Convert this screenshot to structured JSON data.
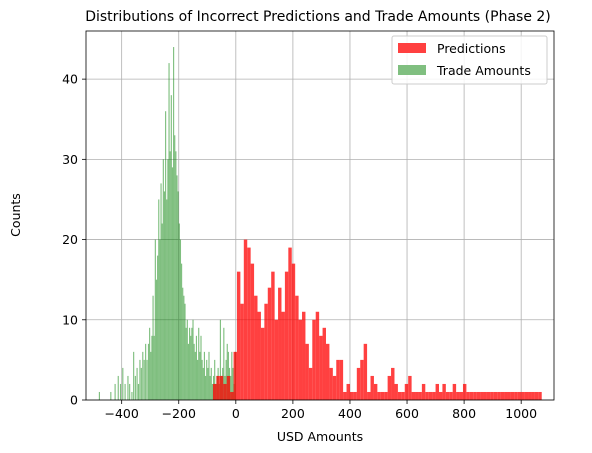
{
  "chart_data": {
    "type": "bar",
    "title": "Distributions of Incorrect Predictions and Trade Amounts (Phase 2)",
    "xlabel": "USD Amounts",
    "ylabel": "Counts",
    "xlim": [
      -525,
      1115
    ],
    "ylim": [
      0,
      46
    ],
    "x_ticks": [
      -400,
      -200,
      0,
      200,
      400,
      600,
      800,
      1000
    ],
    "y_ticks": [
      0,
      10,
      20,
      30,
      40
    ],
    "x_tick_labels": [
      "−400",
      "−200",
      "0",
      "200",
      "400",
      "600",
      "800",
      "1000"
    ],
    "y_tick_labels": [
      "0",
      "10",
      "20",
      "30",
      "40"
    ],
    "grid": true,
    "legend_position": "top-right",
    "series": [
      {
        "name": "Trade Amounts",
        "color": "#008000",
        "opacity": 0.5,
        "bins": [
          [
            -480,
            -476,
            1
          ],
          [
            -440,
            -436,
            1
          ],
          [
            -425,
            -421,
            2
          ],
          [
            -414,
            -410,
            3
          ],
          [
            -406,
            -402,
            2
          ],
          [
            -398,
            -394,
            4
          ],
          [
            -390,
            -386,
            2
          ],
          [
            -380,
            -376,
            3
          ],
          [
            -374,
            -370,
            2
          ],
          [
            -366,
            -362,
            1
          ],
          [
            -360,
            -356,
            6
          ],
          [
            -354,
            -350,
            3
          ],
          [
            -348,
            -344,
            4
          ],
          [
            -343,
            -339,
            2
          ],
          [
            -338,
            -334,
            5
          ],
          [
            -333,
            -329,
            4
          ],
          [
            -328,
            -324,
            6
          ],
          [
            -323,
            -319,
            5
          ],
          [
            -318,
            -314,
            7
          ],
          [
            -313,
            -309,
            5
          ],
          [
            -308,
            -304,
            7
          ],
          [
            -304,
            -300,
            9
          ],
          [
            -300,
            -296,
            6
          ],
          [
            -296,
            -292,
            8
          ],
          [
            -292,
            -288,
            13
          ],
          [
            -288,
            -284,
            8
          ],
          [
            -284,
            -280,
            20
          ],
          [
            -280,
            -276,
            15
          ],
          [
            -276,
            -272,
            18
          ],
          [
            -272,
            -268,
            25
          ],
          [
            -268,
            -264,
            20
          ],
          [
            -264,
            -260,
            27
          ],
          [
            -260,
            -256,
            22
          ],
          [
            -256,
            -252,
            30
          ],
          [
            -252,
            -248,
            26
          ],
          [
            -248,
            -244,
            36
          ],
          [
            -244,
            -240,
            25
          ],
          [
            -240,
            -236,
            30
          ],
          [
            -236,
            -232,
            42
          ],
          [
            -232,
            -228,
            31
          ],
          [
            -228,
            -224,
            38
          ],
          [
            -224,
            -220,
            29
          ],
          [
            -220,
            -216,
            44
          ],
          [
            -216,
            -212,
            33
          ],
          [
            -212,
            -208,
            31
          ],
          [
            -208,
            -204,
            28
          ],
          [
            -204,
            -200,
            26
          ],
          [
            -200,
            -196,
            22
          ],
          [
            -196,
            -192,
            20
          ],
          [
            -192,
            -188,
            17
          ],
          [
            -188,
            -184,
            14
          ],
          [
            -184,
            -180,
            13
          ],
          [
            -180,
            -176,
            12
          ],
          [
            -176,
            -172,
            9
          ],
          [
            -172,
            -168,
            10
          ],
          [
            -168,
            -164,
            7
          ],
          [
            -164,
            -160,
            9
          ],
          [
            -160,
            -156,
            8
          ],
          [
            -156,
            -152,
            9
          ],
          [
            -152,
            -148,
            10
          ],
          [
            -148,
            -144,
            7
          ],
          [
            -144,
            -140,
            6
          ],
          [
            -140,
            -136,
            8
          ],
          [
            -136,
            -132,
            5
          ],
          [
            -132,
            -128,
            9
          ],
          [
            -128,
            -124,
            6
          ],
          [
            -124,
            -120,
            8
          ],
          [
            -120,
            -116,
            5
          ],
          [
            -116,
            -112,
            4
          ],
          [
            -112,
            -108,
            6
          ],
          [
            -108,
            -104,
            3
          ],
          [
            -104,
            -100,
            5
          ],
          [
            -100,
            -96,
            4
          ],
          [
            -96,
            -92,
            6
          ],
          [
            -92,
            -88,
            3
          ],
          [
            -88,
            -84,
            4
          ],
          [
            -84,
            -80,
            2
          ],
          [
            -80,
            -76,
            3
          ],
          [
            -76,
            -72,
            5
          ],
          [
            -72,
            -68,
            2
          ],
          [
            -68,
            -64,
            3
          ],
          [
            -64,
            -60,
            4
          ],
          [
            -60,
            -56,
            2
          ],
          [
            -56,
            -52,
            10
          ],
          [
            -52,
            -48,
            3
          ],
          [
            -48,
            -44,
            4
          ],
          [
            -44,
            -40,
            9
          ],
          [
            -40,
            -36,
            3
          ],
          [
            -36,
            -32,
            5
          ],
          [
            -32,
            -28,
            7
          ],
          [
            -28,
            -24,
            6
          ],
          [
            -24,
            -20,
            4
          ],
          [
            -20,
            -16,
            3
          ],
          [
            -16,
            -12,
            6
          ],
          [
            -12,
            -8,
            4
          ],
          [
            -8,
            -4,
            2
          ],
          [
            -4,
            0,
            6
          ]
        ]
      },
      {
        "name": "Predictions",
        "color": "#ff0000",
        "opacity": 0.75,
        "bins": [
          [
            -80,
            -68,
            2
          ],
          [
            -68,
            -56,
            3
          ],
          [
            -56,
            -44,
            3
          ],
          [
            -44,
            -32,
            2
          ],
          [
            -32,
            -20,
            3
          ],
          [
            -20,
            -8,
            1
          ],
          [
            -8,
            4,
            6
          ],
          [
            4,
            16,
            16
          ],
          [
            16,
            28,
            12
          ],
          [
            28,
            40,
            20
          ],
          [
            40,
            52,
            19
          ],
          [
            52,
            64,
            17
          ],
          [
            64,
            76,
            13
          ],
          [
            76,
            88,
            11
          ],
          [
            88,
            100,
            9
          ],
          [
            100,
            112,
            12
          ],
          [
            112,
            124,
            14
          ],
          [
            124,
            136,
            16
          ],
          [
            136,
            148,
            10
          ],
          [
            148,
            160,
            14
          ],
          [
            160,
            172,
            11
          ],
          [
            172,
            184,
            16
          ],
          [
            184,
            196,
            19
          ],
          [
            196,
            208,
            17
          ],
          [
            208,
            220,
            13
          ],
          [
            220,
            232,
            10
          ],
          [
            232,
            244,
            11
          ],
          [
            244,
            256,
            7
          ],
          [
            256,
            268,
            4
          ],
          [
            268,
            280,
            10
          ],
          [
            280,
            292,
            11
          ],
          [
            292,
            304,
            8
          ],
          [
            304,
            316,
            9
          ],
          [
            316,
            328,
            7
          ],
          [
            328,
            340,
            4
          ],
          [
            340,
            352,
            3
          ],
          [
            352,
            364,
            5
          ],
          [
            364,
            376,
            5
          ],
          [
            376,
            388,
            1
          ],
          [
            388,
            400,
            2
          ],
          [
            400,
            412,
            1
          ],
          [
            412,
            424,
            1
          ],
          [
            424,
            436,
            4
          ],
          [
            436,
            448,
            5
          ],
          [
            448,
            460,
            7
          ],
          [
            460,
            472,
            1
          ],
          [
            472,
            484,
            3
          ],
          [
            484,
            496,
            2
          ],
          [
            496,
            508,
            1
          ],
          [
            508,
            520,
            1
          ],
          [
            520,
            532,
            1
          ],
          [
            532,
            544,
            3
          ],
          [
            544,
            556,
            4
          ],
          [
            556,
            568,
            2
          ],
          [
            568,
            580,
            1
          ],
          [
            580,
            592,
            1
          ],
          [
            592,
            604,
            2
          ],
          [
            604,
            616,
            3
          ],
          [
            616,
            628,
            1
          ],
          [
            628,
            640,
            1
          ],
          [
            640,
            652,
            1
          ],
          [
            652,
            664,
            2
          ],
          [
            664,
            676,
            1
          ],
          [
            676,
            688,
            1
          ],
          [
            688,
            700,
            1
          ],
          [
            700,
            712,
            2
          ],
          [
            712,
            724,
            1
          ],
          [
            724,
            736,
            2
          ],
          [
            736,
            748,
            1
          ],
          [
            748,
            760,
            1
          ],
          [
            760,
            772,
            2
          ],
          [
            772,
            784,
            1
          ],
          [
            784,
            796,
            1
          ],
          [
            796,
            808,
            2
          ],
          [
            808,
            820,
            1
          ],
          [
            820,
            832,
            1
          ],
          [
            832,
            844,
            1
          ],
          [
            844,
            856,
            1
          ],
          [
            856,
            868,
            1
          ],
          [
            868,
            880,
            1
          ],
          [
            880,
            892,
            1
          ],
          [
            892,
            904,
            1
          ],
          [
            904,
            916,
            1
          ],
          [
            916,
            928,
            1
          ],
          [
            928,
            940,
            1
          ],
          [
            940,
            952,
            1
          ],
          [
            952,
            964,
            1
          ],
          [
            964,
            976,
            1
          ],
          [
            976,
            988,
            1
          ],
          [
            988,
            1000,
            1
          ],
          [
            1000,
            1012,
            1
          ],
          [
            1012,
            1024,
            1
          ],
          [
            1024,
            1036,
            1
          ],
          [
            1036,
            1048,
            1
          ],
          [
            1048,
            1060,
            1
          ],
          [
            1060,
            1072,
            1
          ]
        ]
      }
    ],
    "legend": [
      {
        "label": "Predictions",
        "color": "#ff4040"
      },
      {
        "label": "Trade Amounts",
        "color": "#80bf80"
      }
    ]
  }
}
